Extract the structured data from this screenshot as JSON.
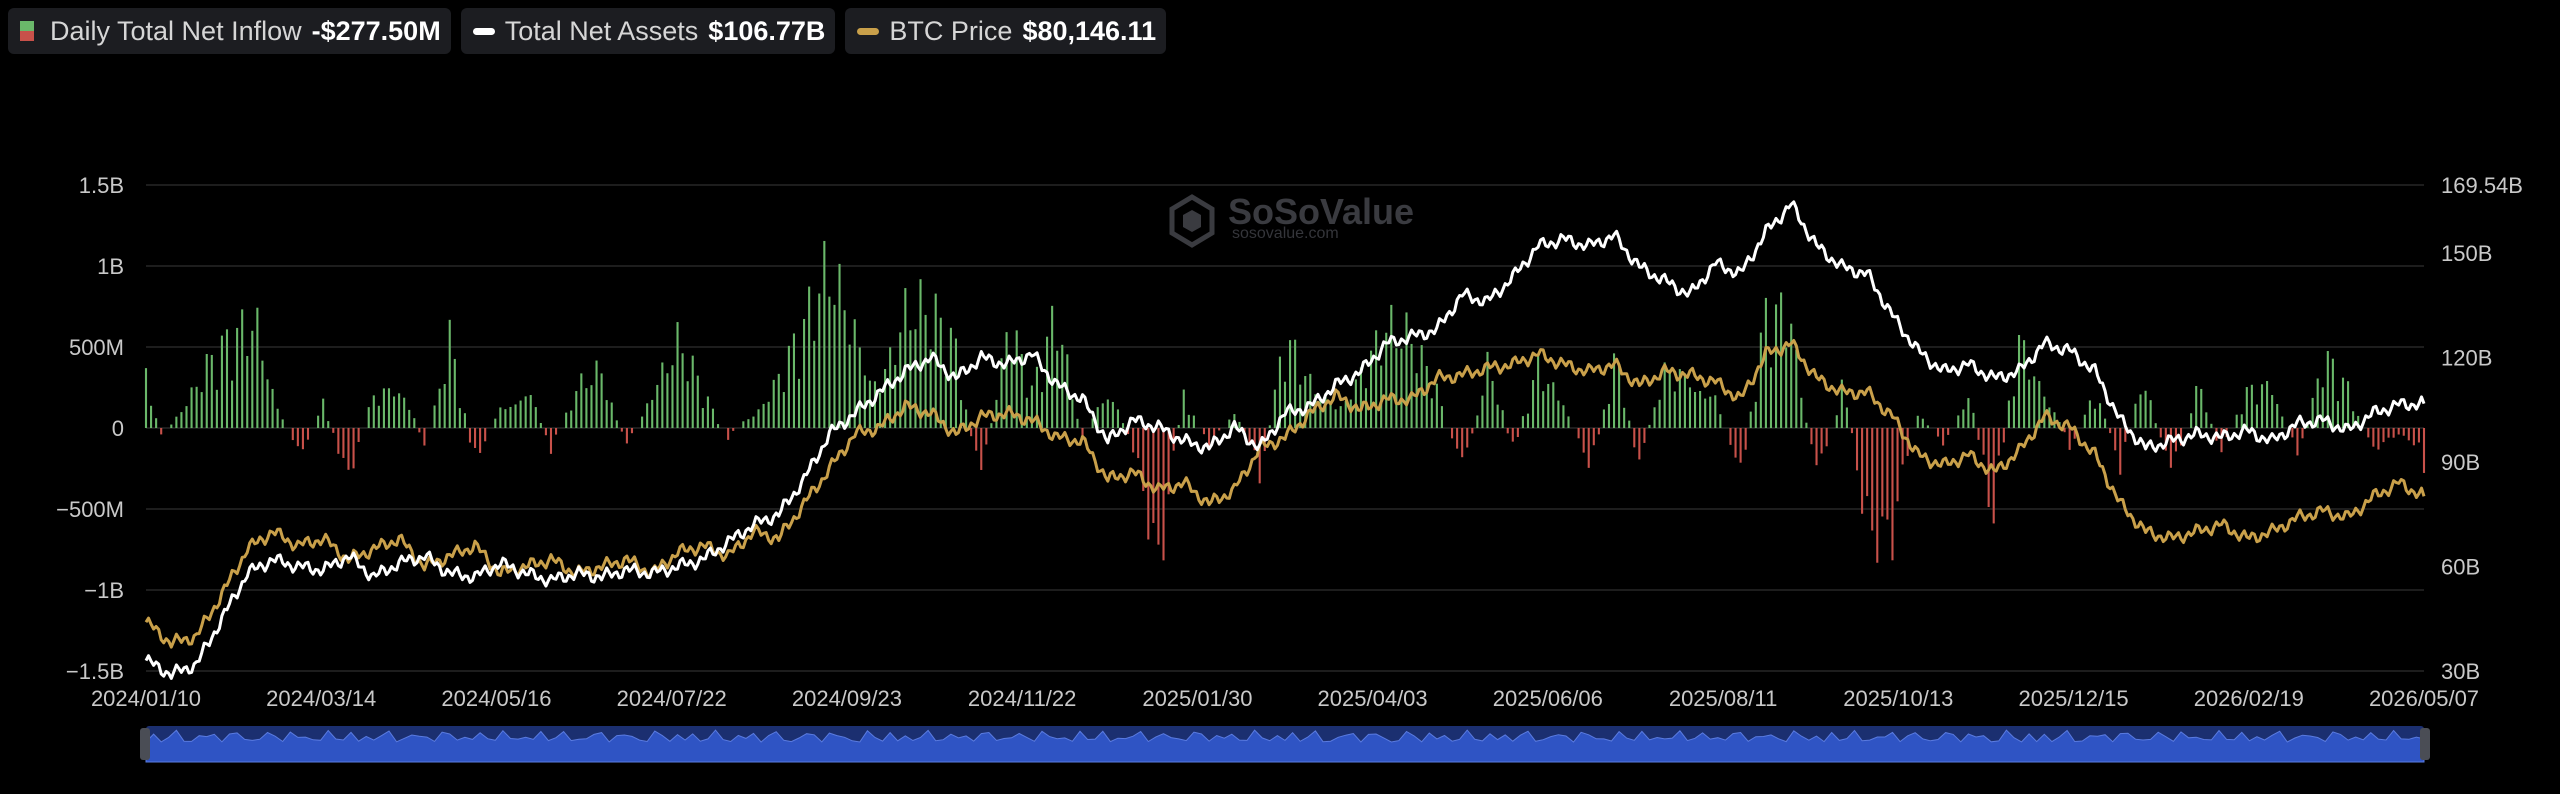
{
  "legend": {
    "inflow": {
      "label": "Daily Total Net Inflow",
      "value": "-$277.50M"
    },
    "assets": {
      "label": "Total Net Assets",
      "value": "$106.77B"
    },
    "btc": {
      "label": "BTC Price",
      "value": "$80,146.11"
    }
  },
  "watermark": {
    "name": "SoSoValue",
    "url": "sosovalue.com"
  },
  "colors": {
    "positive": "#6ab86a",
    "negative": "#c8514a",
    "assets": "#ffffff",
    "btc": "#c9a04a",
    "grid": "#3a3a3a",
    "navigator": "#1f3a8a"
  },
  "chart_data": {
    "type": "bar",
    "combo": "bar + 2 lines (dual axis)",
    "x_tick_labels": [
      "2024/01/10",
      "2024/03/14",
      "2024/05/16",
      "2024/07/22",
      "2024/09/23",
      "2024/11/22",
      "2025/01/30",
      "2025/04/03",
      "2025/06/06",
      "2025/08/11",
      "2025/10/13",
      "2025/12/15",
      "2026/02/19",
      "2026/05/07"
    ],
    "left_axis": {
      "ticks": [
        "1.5B",
        "1B",
        "500M",
        "0",
        "−500M",
        "−1B",
        "−1.5B"
      ],
      "range": [
        -1500,
        1500
      ],
      "unit": "M USD"
    },
    "right_axis": {
      "ticks": [
        "169.54B",
        "150B",
        "120B",
        "90B",
        "60B",
        "30B"
      ],
      "range": [
        30,
        169.54
      ],
      "unit": "B USD"
    },
    "grid": true,
    "legend_position": "top-left",
    "series": [
      {
        "name": "Daily Total Net Inflow",
        "kind": "bar",
        "axis": "left",
        "anchors": [
          [
            0,
            600
          ],
          [
            6,
            -100
          ],
          [
            14,
            200
          ],
          [
            24,
            500
          ],
          [
            34,
            700
          ],
          [
            44,
            1000
          ],
          [
            52,
            300
          ],
          [
            60,
            -300
          ],
          [
            70,
            200
          ],
          [
            80,
            -400
          ],
          [
            90,
            300
          ],
          [
            100,
            600
          ],
          [
            110,
            -200
          ],
          [
            120,
            700
          ],
          [
            130,
            -300
          ],
          [
            140,
            200
          ],
          [
            150,
            500
          ],
          [
            160,
            -200
          ],
          [
            170,
            300
          ],
          [
            180,
            500
          ],
          [
            190,
            -200
          ],
          [
            200,
            400
          ],
          [
            210,
            700
          ],
          [
            220,
            300
          ],
          [
            230,
            -100
          ],
          [
            240,
            200
          ],
          [
            250,
            500
          ],
          [
            260,
            800
          ],
          [
            270,
            1300
          ],
          [
            280,
            1100
          ],
          [
            290,
            600
          ],
          [
            300,
            1000
          ],
          [
            310,
            900
          ],
          [
            320,
            700
          ],
          [
            330,
            -600
          ],
          [
            340,
            1100
          ],
          [
            350,
            300
          ],
          [
            360,
            900
          ],
          [
            370,
            -100
          ],
          [
            380,
            500
          ],
          [
            390,
            -200
          ],
          [
            400,
            -1100
          ],
          [
            410,
            300
          ],
          [
            420,
            -200
          ],
          [
            430,
            200
          ],
          [
            440,
            -400
          ],
          [
            450,
            700
          ],
          [
            460,
            400
          ],
          [
            470,
            300
          ],
          [
            480,
            600
          ],
          [
            490,
            800
          ],
          [
            500,
            700
          ],
          [
            510,
            400
          ],
          [
            520,
            -500
          ],
          [
            530,
            600
          ],
          [
            540,
            -200
          ],
          [
            550,
            500
          ],
          [
            560,
            300
          ],
          [
            570,
            -500
          ],
          [
            580,
            600
          ],
          [
            590,
            -300
          ],
          [
            600,
            500
          ],
          [
            610,
            700
          ],
          [
            620,
            300
          ],
          [
            630,
            -400
          ],
          [
            640,
            900
          ],
          [
            650,
            1100
          ],
          [
            660,
            -600
          ],
          [
            670,
            400
          ],
          [
            680,
            -800
          ],
          [
            690,
            -900
          ],
          [
            700,
            200
          ],
          [
            710,
            -200
          ],
          [
            720,
            300
          ],
          [
            730,
            -700
          ],
          [
            740,
            800
          ],
          [
            750,
            500
          ],
          [
            760,
            -200
          ],
          [
            770,
            300
          ],
          [
            780,
            -300
          ],
          [
            790,
            500
          ],
          [
            800,
            -600
          ],
          [
            810,
            400
          ],
          [
            820,
            -200
          ],
          [
            830,
            300
          ],
          [
            840,
            500
          ],
          [
            850,
            -300
          ],
          [
            860,
            600
          ],
          [
            870,
            300
          ],
          [
            880,
            -200
          ],
          [
            890,
            -100
          ],
          [
            900,
            -277.5
          ]
        ]
      },
      {
        "name": "Total Net Assets",
        "kind": "line",
        "axis": "right",
        "anchors": [
          [
            0,
            33
          ],
          [
            10,
            29
          ],
          [
            20,
            32
          ],
          [
            30,
            45
          ],
          [
            40,
            58
          ],
          [
            50,
            62
          ],
          [
            60,
            60
          ],
          [
            70,
            59
          ],
          [
            80,
            63
          ],
          [
            90,
            57
          ],
          [
            100,
            61
          ],
          [
            110,
            63
          ],
          [
            120,
            58
          ],
          [
            130,
            57
          ],
          [
            140,
            61
          ],
          [
            150,
            58
          ],
          [
            160,
            56
          ],
          [
            170,
            58
          ],
          [
            180,
            57
          ],
          [
            190,
            59
          ],
          [
            200,
            58
          ],
          [
            210,
            60
          ],
          [
            220,
            62
          ],
          [
            230,
            67
          ],
          [
            240,
            72
          ],
          [
            250,
            75
          ],
          [
            260,
            85
          ],
          [
            270,
            98
          ],
          [
            280,
            104
          ],
          [
            290,
            110
          ],
          [
            300,
            116
          ],
          [
            310,
            120
          ],
          [
            320,
            114
          ],
          [
            330,
            120
          ],
          [
            340,
            118
          ],
          [
            350,
            121
          ],
          [
            360,
            112
          ],
          [
            370,
            108
          ],
          [
            380,
            96
          ],
          [
            390,
            102
          ],
          [
            400,
            100
          ],
          [
            410,
            96
          ],
          [
            420,
            94
          ],
          [
            430,
            100
          ],
          [
            440,
            94
          ],
          [
            450,
            104
          ],
          [
            460,
            106
          ],
          [
            470,
            112
          ],
          [
            480,
            116
          ],
          [
            490,
            124
          ],
          [
            500,
            126
          ],
          [
            510,
            128
          ],
          [
            520,
            138
          ],
          [
            530,
            136
          ],
          [
            540,
            143
          ],
          [
            550,
            152
          ],
          [
            560,
            154
          ],
          [
            570,
            152
          ],
          [
            580,
            155
          ],
          [
            590,
            146
          ],
          [
            600,
            142
          ],
          [
            610,
            138
          ],
          [
            620,
            147
          ],
          [
            630,
            144
          ],
          [
            640,
            156
          ],
          [
            650,
            164
          ],
          [
            660,
            152
          ],
          [
            670,
            146
          ],
          [
            680,
            144
          ],
          [
            690,
            132
          ],
          [
            700,
            122
          ],
          [
            710,
            116
          ],
          [
            720,
            118
          ],
          [
            730,
            114
          ],
          [
            740,
            116
          ],
          [
            750,
            124
          ],
          [
            760,
            122
          ],
          [
            770,
            116
          ],
          [
            780,
            102
          ],
          [
            790,
            94
          ],
          [
            800,
            96
          ],
          [
            810,
            98
          ],
          [
            820,
            97
          ],
          [
            830,
            99
          ],
          [
            840,
            96
          ],
          [
            850,
            101
          ],
          [
            860,
            102
          ],
          [
            870,
            99
          ],
          [
            880,
            104
          ],
          [
            890,
            106.5
          ],
          [
            900,
            106.77
          ]
        ]
      },
      {
        "name": "BTC Price",
        "kind": "line",
        "axis": "right",
        "anchors": [
          [
            0,
            44
          ],
          [
            10,
            38
          ],
          [
            20,
            40
          ],
          [
            30,
            52
          ],
          [
            40,
            65
          ],
          [
            50,
            70
          ],
          [
            60,
            66
          ],
          [
            70,
            68
          ],
          [
            80,
            62
          ],
          [
            90,
            65
          ],
          [
            100,
            68
          ],
          [
            110,
            60
          ],
          [
            120,
            63
          ],
          [
            130,
            66
          ],
          [
            140,
            58
          ],
          [
            150,
            60
          ],
          [
            160,
            62
          ],
          [
            170,
            58
          ],
          [
            180,
            60
          ],
          [
            190,
            62
          ],
          [
            200,
            58
          ],
          [
            210,
            64
          ],
          [
            220,
            66
          ],
          [
            230,
            63
          ],
          [
            240,
            70
          ],
          [
            250,
            68
          ],
          [
            260,
            78
          ],
          [
            270,
            88
          ],
          [
            280,
            98
          ],
          [
            290,
            100
          ],
          [
            300,
            106
          ],
          [
            310,
            104
          ],
          [
            320,
            98
          ],
          [
            330,
            103
          ],
          [
            340,
            104
          ],
          [
            350,
            102
          ],
          [
            360,
            97
          ],
          [
            370,
            96
          ],
          [
            380,
            85
          ],
          [
            390,
            87
          ],
          [
            400,
            82
          ],
          [
            410,
            84
          ],
          [
            420,
            78
          ],
          [
            430,
            82
          ],
          [
            440,
            94
          ],
          [
            450,
            97
          ],
          [
            460,
            104
          ],
          [
            470,
            109
          ],
          [
            480,
            105
          ],
          [
            490,
            108
          ],
          [
            500,
            108
          ],
          [
            510,
            114
          ],
          [
            520,
            115
          ],
          [
            530,
            117
          ],
          [
            540,
            118
          ],
          [
            550,
            121
          ],
          [
            560,
            118
          ],
          [
            570,
            116
          ],
          [
            580,
            118
          ],
          [
            590,
            112
          ],
          [
            600,
            116
          ],
          [
            610,
            115
          ],
          [
            620,
            113
          ],
          [
            630,
            108
          ],
          [
            640,
            121
          ],
          [
            650,
            124
          ],
          [
            660,
            114
          ],
          [
            670,
            110
          ],
          [
            680,
            110
          ],
          [
            690,
            103
          ],
          [
            700,
            92
          ],
          [
            710,
            89
          ],
          [
            720,
            92
          ],
          [
            730,
            87
          ],
          [
            740,
            93
          ],
          [
            750,
            103
          ],
          [
            760,
            100
          ],
          [
            770,
            92
          ],
          [
            780,
            78
          ],
          [
            790,
            70
          ],
          [
            800,
            68
          ],
          [
            810,
            70
          ],
          [
            820,
            72
          ],
          [
            830,
            68
          ],
          [
            840,
            70
          ],
          [
            850,
            74
          ],
          [
            860,
            76
          ],
          [
            870,
            74
          ],
          [
            880,
            80
          ],
          [
            890,
            84
          ],
          [
            900,
            80.15
          ]
        ]
      }
    ]
  }
}
